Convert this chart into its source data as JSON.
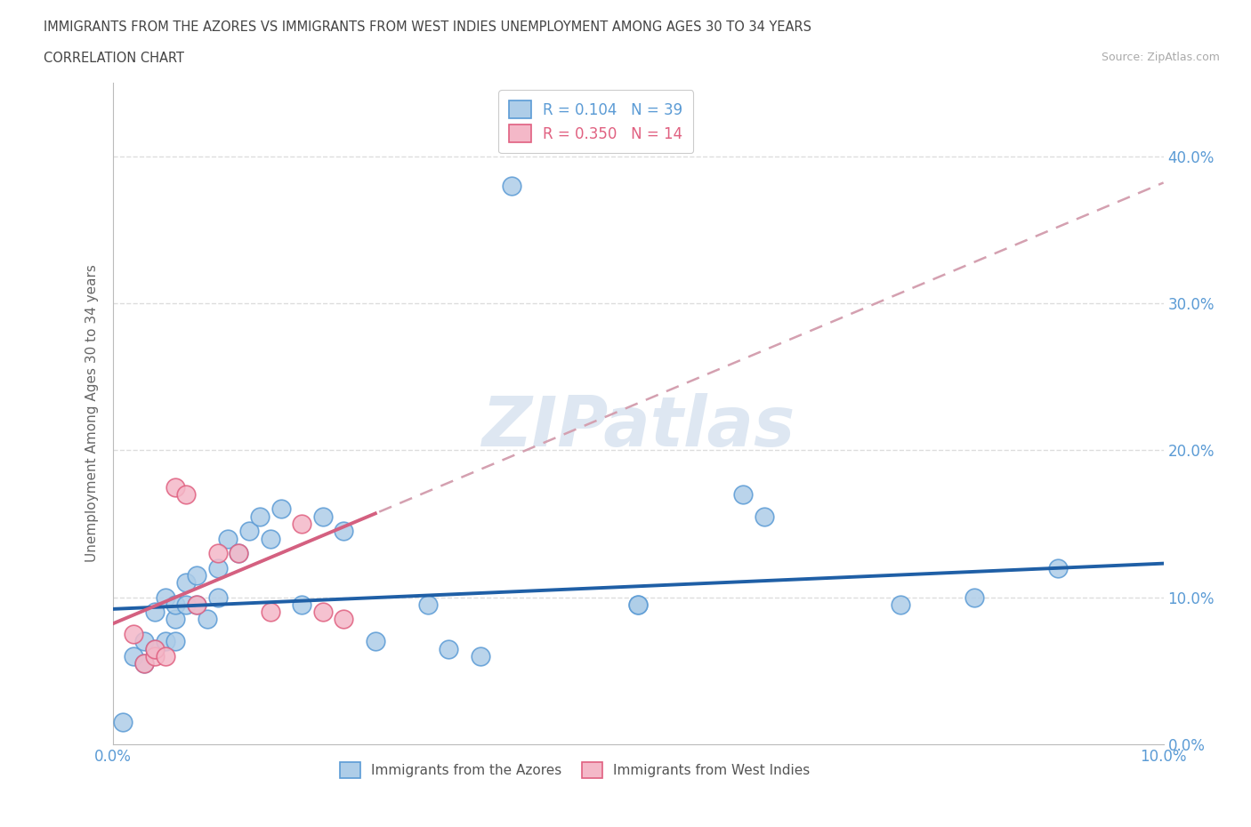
{
  "title_line1": "IMMIGRANTS FROM THE AZORES VS IMMIGRANTS FROM WEST INDIES UNEMPLOYMENT AMONG AGES 30 TO 34 YEARS",
  "title_line2": "CORRELATION CHART",
  "source_text": "Source: ZipAtlas.com",
  "ylabel": "Unemployment Among Ages 30 to 34 years",
  "xlim": [
    0.0,
    0.1
  ],
  "ylim": [
    0.0,
    0.45
  ],
  "xticks": [
    0.0,
    0.02,
    0.04,
    0.06,
    0.08,
    0.1
  ],
  "yticks": [
    0.0,
    0.1,
    0.2,
    0.3,
    0.4
  ],
  "ytick_labels": [
    "0.0%",
    "10.0%",
    "20.0%",
    "30.0%",
    "40.0%"
  ],
  "xtick_labels": [
    "0.0%",
    "",
    "",
    "",
    "",
    "10.0%"
  ],
  "azores_color": "#aecde8",
  "azores_edge_color": "#5b9bd5",
  "west_indies_color": "#f4b8c8",
  "west_indies_edge_color": "#e06080",
  "blue_line_color": "#1f5fa6",
  "pink_line_color": "#d46080",
  "pink_dash_color": "#d4a0b0",
  "watermark_color": "#c8d8ea",
  "R_azores": 0.104,
  "N_azores": 39,
  "R_west_indies": 0.35,
  "N_west_indies": 14,
  "blue_line_x0": 0.0,
  "blue_line_y0": 0.092,
  "blue_line_x1": 0.1,
  "blue_line_y1": 0.123,
  "pink_line_x0": 0.0,
  "pink_line_y0": 0.082,
  "pink_line_x1": 0.1,
  "pink_line_y1": 0.382,
  "azores_x": [
    0.001,
    0.002,
    0.003,
    0.003,
    0.004,
    0.004,
    0.005,
    0.005,
    0.006,
    0.006,
    0.006,
    0.007,
    0.007,
    0.008,
    0.008,
    0.009,
    0.01,
    0.01,
    0.011,
    0.012,
    0.013,
    0.014,
    0.015,
    0.016,
    0.018,
    0.02,
    0.022,
    0.025,
    0.03,
    0.032,
    0.035,
    0.038,
    0.05,
    0.05,
    0.06,
    0.062,
    0.075,
    0.082,
    0.09
  ],
  "azores_y": [
    0.015,
    0.06,
    0.055,
    0.07,
    0.065,
    0.09,
    0.07,
    0.1,
    0.07,
    0.085,
    0.095,
    0.095,
    0.11,
    0.095,
    0.115,
    0.085,
    0.1,
    0.12,
    0.14,
    0.13,
    0.145,
    0.155,
    0.14,
    0.16,
    0.095,
    0.155,
    0.145,
    0.07,
    0.095,
    0.065,
    0.06,
    0.38,
    0.095,
    0.095,
    0.17,
    0.155,
    0.095,
    0.1,
    0.12
  ],
  "west_indies_x": [
    0.002,
    0.003,
    0.004,
    0.004,
    0.005,
    0.006,
    0.007,
    0.008,
    0.01,
    0.012,
    0.015,
    0.018,
    0.02,
    0.022
  ],
  "west_indies_y": [
    0.075,
    0.055,
    0.06,
    0.065,
    0.06,
    0.175,
    0.17,
    0.095,
    0.13,
    0.13,
    0.09,
    0.15,
    0.09,
    0.085
  ],
  "background_color": "#ffffff",
  "grid_color": "#dddddd",
  "tick_color": "#5b9bd5",
  "label_color": "#666666",
  "title_color": "#444444"
}
